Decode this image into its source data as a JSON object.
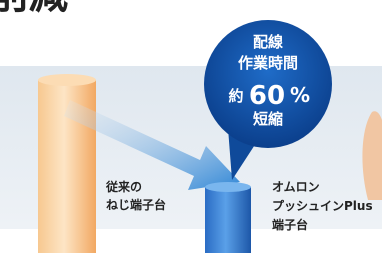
{
  "header": {
    "title": "削減"
  },
  "bubble": {
    "line1": "配線",
    "line2": "作業時間",
    "prefix": "約",
    "number": "60",
    "unit": "%",
    "line4": "短縮"
  },
  "labels": {
    "conventional": [
      "従来の",
      "ねじ端子台"
    ],
    "omron": [
      "オムロン",
      "プッシュインPlus",
      "端子台"
    ]
  }
}
